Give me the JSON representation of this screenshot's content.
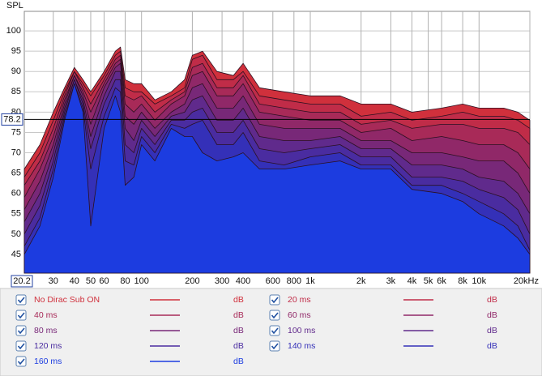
{
  "chart_data": {
    "type": "area",
    "y_axis_label": "SPL",
    "cursor_y": 78.2,
    "xlim": [
      20.2,
      20000
    ],
    "ylim": [
      40.4,
      104.8
    ],
    "log_x": true,
    "grid": true,
    "xticks": [
      30,
      40,
      50,
      60,
      80,
      100,
      200,
      300,
      400,
      600,
      800,
      {
        "value": 1000,
        "label": "1k"
      },
      {
        "value": 2000,
        "label": "2k"
      },
      {
        "value": 3000,
        "label": "3k"
      },
      {
        "value": 4000,
        "label": "4k"
      },
      {
        "value": 5000,
        "label": "5k"
      },
      {
        "value": 6000,
        "label": "6k"
      },
      {
        "value": 8000,
        "label": "8k"
      },
      {
        "value": 10000,
        "label": "10k"
      },
      {
        "value": 20000,
        "label": "20kHz"
      }
    ],
    "yticks": [
      45,
      50,
      55,
      60,
      65,
      70,
      75,
      80,
      85,
      90,
      95,
      100
    ],
    "x": [
      20.2,
      25,
      30,
      35,
      40,
      45,
      50,
      60,
      70,
      75,
      80,
      90,
      100,
      120,
      150,
      180,
      200,
      230,
      280,
      350,
      400,
      500,
      700,
      1000,
      1500,
      2000,
      3000,
      4000,
      6000,
      8000,
      10000,
      14000,
      17000,
      20000
    ],
    "series": [
      {
        "name": "No Dirac Sub ON",
        "unit": "dB",
        "color": "#d0303c",
        "values": [
          66,
          72,
          80,
          86,
          91,
          88,
          85,
          90,
          95,
          96,
          88,
          87,
          87,
          83,
          85,
          88,
          94,
          95,
          90,
          89,
          92,
          86,
          85,
          84,
          84,
          82,
          82,
          80,
          81,
          82,
          81,
          81,
          80,
          78
        ]
      },
      {
        "name": "20 ms",
        "unit": "dB",
        "color": "#c02c48",
        "values": [
          64,
          70,
          78,
          85,
          90,
          87,
          84,
          89,
          94,
          95,
          86,
          85,
          85,
          82,
          84,
          86,
          93,
          94,
          88,
          88,
          90,
          84,
          83,
          82,
          82,
          79,
          80,
          78,
          79,
          80,
          79,
          79,
          78,
          76
        ]
      },
      {
        "name": "40 ms",
        "unit": "dB",
        "color": "#a82a58",
        "values": [
          62,
          68,
          76,
          84,
          90,
          86,
          82,
          88,
          93,
          94,
          84,
          83,
          84,
          80,
          83,
          85,
          91,
          92,
          86,
          86,
          89,
          82,
          81,
          80,
          80,
          77,
          78,
          76,
          77,
          77,
          76,
          76,
          75,
          72
        ]
      },
      {
        "name": "60 ms",
        "unit": "dB",
        "color": "#902868",
        "values": [
          59,
          66,
          74,
          83,
          89,
          85,
          80,
          87,
          92,
          93,
          82,
          80,
          82,
          78,
          82,
          84,
          89,
          90,
          84,
          84,
          87,
          80,
          79,
          78,
          78,
          75,
          76,
          73,
          74,
          73,
          72,
          72,
          70,
          66
        ]
      },
      {
        "name": "80 ms",
        "unit": "dB",
        "color": "#782878",
        "values": [
          56,
          63,
          72,
          82,
          89,
          84,
          77,
          86,
          91,
          92,
          79,
          77,
          80,
          76,
          80,
          82,
          86,
          87,
          81,
          81,
          84,
          77,
          76,
          76,
          76,
          73,
          73,
          70,
          70,
          69,
          68,
          68,
          65,
          60
        ]
      },
      {
        "name": "100 ms",
        "unit": "dB",
        "color": "#602a8c",
        "values": [
          53,
          60,
          70,
          81,
          88,
          83,
          74,
          84,
          90,
          90,
          76,
          73,
          78,
          74,
          79,
          80,
          83,
          84,
          78,
          78,
          81,
          74,
          73,
          73,
          74,
          71,
          71,
          67,
          67,
          66,
          64,
          63,
          60,
          55
        ]
      },
      {
        "name": "120 ms",
        "unit": "dB",
        "color": "#4a2ca0",
        "values": [
          50,
          57,
          68,
          80,
          88,
          82,
          71,
          82,
          88,
          88,
          72,
          70,
          76,
          72,
          78,
          78,
          80,
          81,
          75,
          75,
          78,
          71,
          70,
          71,
          72,
          69,
          69,
          64,
          64,
          63,
          61,
          59,
          56,
          50
        ]
      },
      {
        "name": "140 ms",
        "unit": "dB",
        "color": "#3430b8",
        "values": [
          47,
          54,
          66,
          79,
          87,
          81,
          66,
          79,
          86,
          85,
          68,
          67,
          74,
          70,
          77,
          76,
          77,
          78,
          72,
          72,
          75,
          68,
          67,
          69,
          70,
          67,
          67,
          62,
          62,
          60,
          58,
          55,
          52,
          46
        ]
      },
      {
        "name": "160 ms",
        "unit": "dB",
        "color": "#1c3ce0",
        "values": [
          45,
          52,
          64,
          78,
          87,
          80,
          52,
          76,
          84,
          80,
          62,
          64,
          72,
          68,
          76,
          74,
          74,
          70,
          68,
          69,
          70,
          66,
          66,
          67,
          68,
          66,
          66,
          61,
          60,
          58,
          55,
          52,
          49,
          45
        ]
      }
    ]
  }
}
